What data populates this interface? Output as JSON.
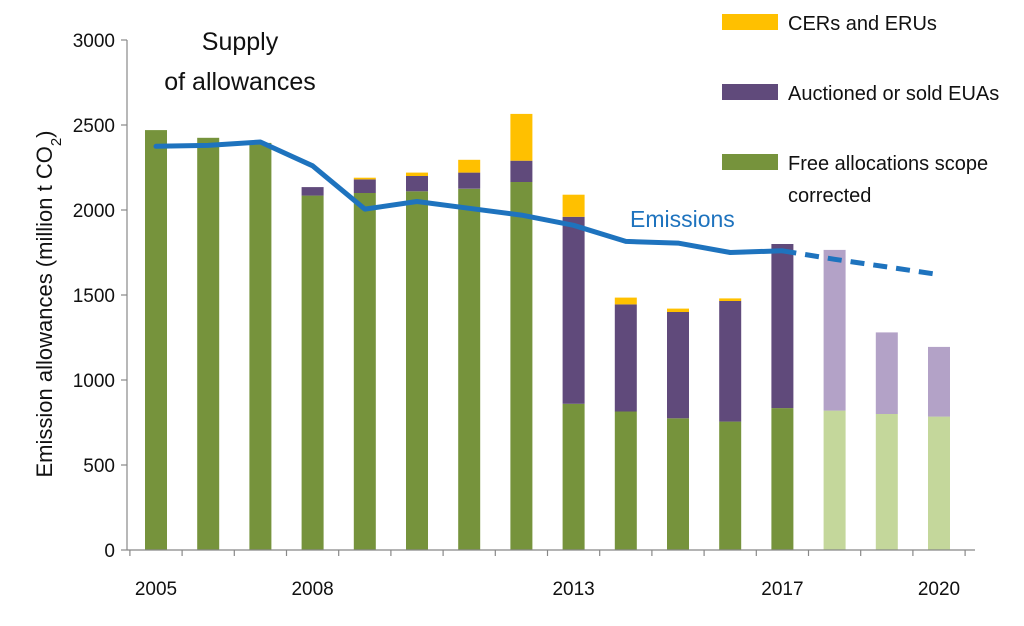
{
  "chart_data": {
    "type": "bar",
    "stacked": true,
    "ylabel": "Emission allowances (million t CO",
    "ylabel_sub": "2",
    "ylabel_end": ")",
    "ylim": [
      0,
      3000
    ],
    "yticks": [
      0,
      500,
      1000,
      1500,
      2000,
      2500,
      3000
    ],
    "categories": [
      2005,
      2006,
      2007,
      2008,
      2009,
      2010,
      2011,
      2012,
      2013,
      2014,
      2015,
      2016,
      2017,
      2018,
      2019,
      2020
    ],
    "xtick_labels": [
      {
        "year": 2005,
        "label": "2005"
      },
      {
        "year": 2008,
        "label": "2008"
      },
      {
        "year": 2013,
        "label": "2013"
      },
      {
        "year": 2017,
        "label": "2017"
      },
      {
        "year": 2020,
        "label": "2020"
      }
    ],
    "projected_from": 2018,
    "series": [
      {
        "name": "Free allocations scope corrected",
        "label_lines": [
          "Free allocations scope",
          "corrected"
        ],
        "color": "#76933c",
        "projected_color": "#c4d79b",
        "values": [
          2470,
          2425,
          2395,
          2085,
          2100,
          2110,
          2125,
          2165,
          860,
          815,
          775,
          755,
          835,
          820,
          800,
          785
        ]
      },
      {
        "name": "Auctioned or sold EUAs",
        "label_lines": [
          "Auctioned or sold EUAs"
        ],
        "color": "#604a7b",
        "projected_color": "#b3a2c7",
        "values": [
          0,
          0,
          0,
          50,
          80,
          90,
          95,
          125,
          1100,
          630,
          625,
          710,
          965,
          945,
          480,
          410
        ]
      },
      {
        "name": "CERs and ERUs",
        "label_lines": [
          "CERs and ERUs"
        ],
        "color": "#ffc000",
        "projected_color": "#ffc000",
        "values": [
          0,
          0,
          0,
          0,
          10,
          20,
          75,
          275,
          130,
          40,
          20,
          15,
          0,
          0,
          0,
          0
        ]
      }
    ],
    "emissions": {
      "name": "Emissions",
      "color": "#1e73be",
      "x": [
        2005,
        2006,
        2007,
        2008,
        2009,
        2010,
        2011,
        2012,
        2013,
        2014,
        2015,
        2016,
        2017
      ],
      "values": [
        2375,
        2380,
        2400,
        2260,
        2005,
        2050,
        2010,
        1970,
        1910,
        1815,
        1805,
        1750,
        1760
      ],
      "projection_x": [
        2017,
        2018,
        2019,
        2020
      ],
      "projection_values": [
        1760,
        1710,
        1665,
        1620
      ]
    },
    "annotation": {
      "lines": [
        "Supply",
        "of allowances"
      ]
    }
  }
}
